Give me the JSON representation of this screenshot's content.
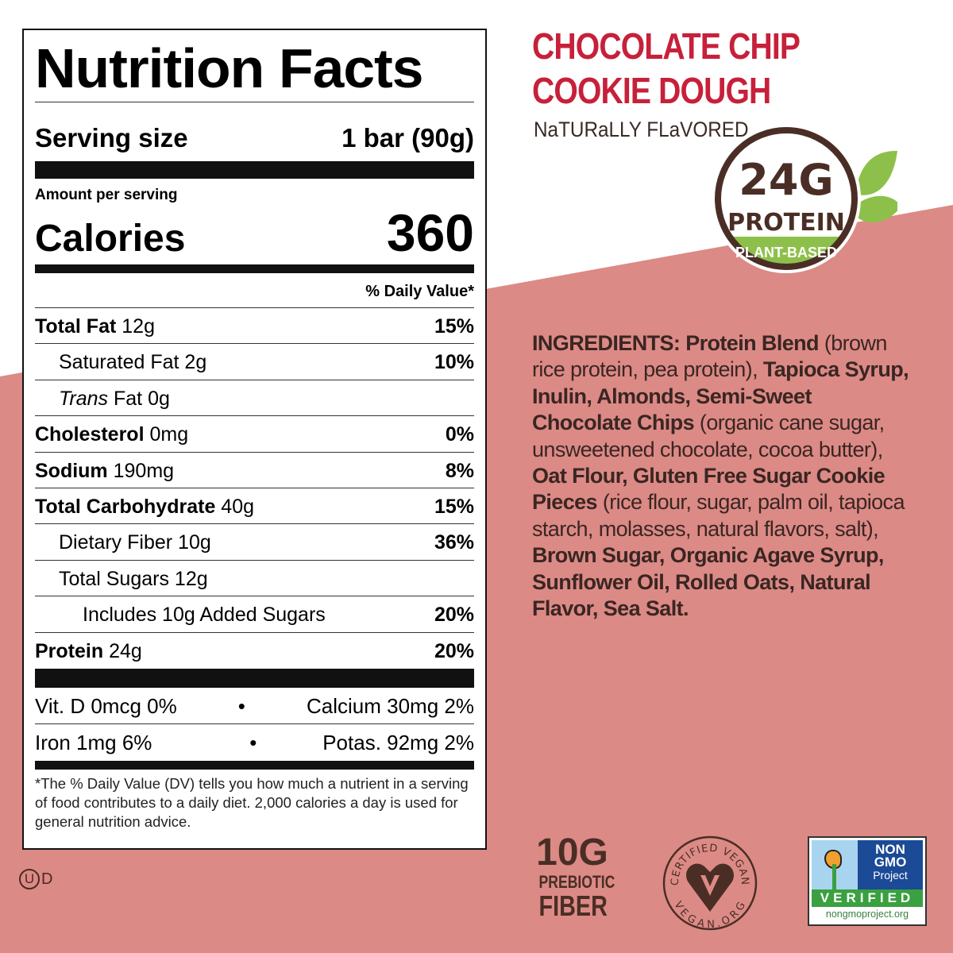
{
  "product": {
    "title_line1": "CHOCOLATE CHIP",
    "title_line2": "COOKIE DOUGH",
    "subtitle": "NaTURaLLY FLaVORED",
    "accent": "#c7203a",
    "bg_pink": "#dc8a86"
  },
  "protein_badge": {
    "amount": "24G",
    "label": "PROTEIN",
    "sub": "PLANT-BASED"
  },
  "nutrition": {
    "title": "Nutrition Facts",
    "serving_label": "Serving size",
    "serving_value": "1 bar (90g)",
    "amount_per": "Amount per serving",
    "calories_label": "Calories",
    "calories": "360",
    "dv_header": "% Daily Value*",
    "rows": [
      {
        "name": "Total Fat",
        "amt": " 12g",
        "dv": "15%"
      },
      {
        "name": "Saturated Fat 2g",
        "amt": "",
        "dv": "10%"
      },
      {
        "name": "Trans",
        "amt": " Fat 0g",
        "dv": ""
      },
      {
        "name": "Cholesterol",
        "amt": " 0mg",
        "dv": "0%"
      },
      {
        "name": "Sodium",
        "amt": " 190mg",
        "dv": "8%"
      },
      {
        "name": "Total Carbohydrate",
        "amt": " 40g",
        "dv": "15%"
      },
      {
        "name": "Dietary Fiber 10g",
        "amt": "",
        "dv": "36%"
      },
      {
        "name": "Total Sugars 12g",
        "amt": "",
        "dv": ""
      },
      {
        "name": "Includes 10g Added Sugars",
        "amt": "",
        "dv": "20%"
      },
      {
        "name": "Protein",
        "amt": " 24g",
        "dv": "20%"
      }
    ],
    "vitamins": [
      {
        "left": "Vit. D 0mcg 0%",
        "sep": "•",
        "right": "Calcium 30mg 2%"
      },
      {
        "left": "Iron 1mg 6%",
        "sep": "•",
        "right": "Potas. 92mg 2%"
      }
    ],
    "footnote": "*The % Daily Value (DV) tells you how much a nutrient in a serving of food contributes to a daily diet. 2,000 calories a day is used for general nutrition advice."
  },
  "ingredients": [
    "INGREDIENTS: Protein Blend",
    " (brown rice protein, pea protein), ",
    "Tapioca Syrup, Inulin, Almonds, Semi-Sweet Chocolate Chips",
    " (organic cane sugar, unsweetened chocolate, cocoa butter), ",
    "Oat Flour, Gluten Free Sugar Cookie Pieces",
    " (rice flour, sugar, palm oil, tapioca starch, molasses, natural flavors, salt), ",
    "Brown Sugar, Organic Agave Syrup, Sunflower Oil, Rolled Oats, Natural Flavor, Sea Salt."
  ],
  "kosher": {
    "u": "U",
    "d": "D"
  },
  "fiber_badge": {
    "amount": "10G",
    "line1": "PREBIOTIC",
    "line2": "FIBER"
  },
  "vegan_badge": {
    "top": "CERTIFIED VEGAN",
    "bottom": "VEGAN.ORG"
  },
  "nongmo_badge": {
    "line1": "NON",
    "line2": "GMO",
    "line3": "Project",
    "verified": "VERIFIED",
    "url": "nongmoproject.org"
  }
}
